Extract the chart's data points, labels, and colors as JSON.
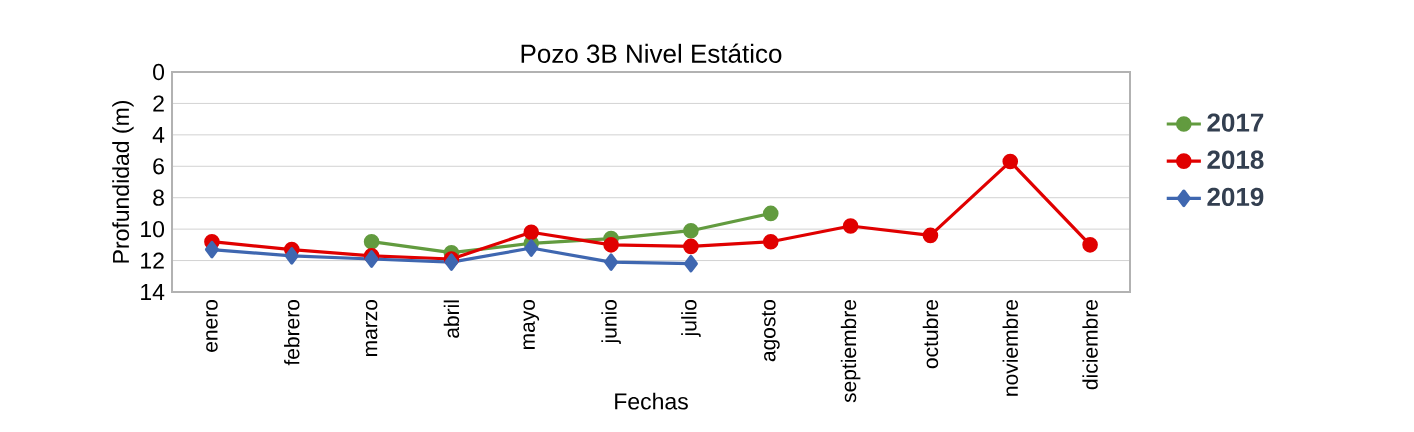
{
  "chart_data": {
    "type": "line",
    "title": "Pozo 3B Nivel Estático",
    "xlabel": "Fechas",
    "ylabel": "Profundidad (m)",
    "categories": [
      "enero",
      "febrero",
      "marzo",
      "abril",
      "mayo",
      "junio",
      "julio",
      "agosto",
      "septiembre",
      "octubre",
      "noviembre",
      "diciembre"
    ],
    "series": [
      {
        "name": "2017",
        "color": "#629b3f",
        "marker": "circle",
        "values": [
          null,
          null,
          10.8,
          11.5,
          10.9,
          10.6,
          10.1,
          9.0,
          null,
          null,
          null,
          null
        ]
      },
      {
        "name": "2018",
        "color": "#e00000",
        "marker": "circle",
        "values": [
          10.8,
          11.3,
          11.7,
          11.9,
          10.2,
          11.0,
          11.1,
          10.8,
          9.8,
          10.4,
          5.7,
          11.0
        ]
      },
      {
        "name": "2019",
        "color": "#3f67b0",
        "marker": "diamond",
        "values": [
          11.3,
          11.7,
          11.9,
          12.1,
          11.2,
          12.1,
          12.2,
          null,
          null,
          null,
          null,
          null
        ]
      }
    ],
    "ylim": [
      14,
      0
    ],
    "yticks": [
      0,
      2,
      4,
      6,
      8,
      10,
      12,
      14
    ],
    "grid": "y",
    "legend": "right",
    "line_style": "solid"
  }
}
